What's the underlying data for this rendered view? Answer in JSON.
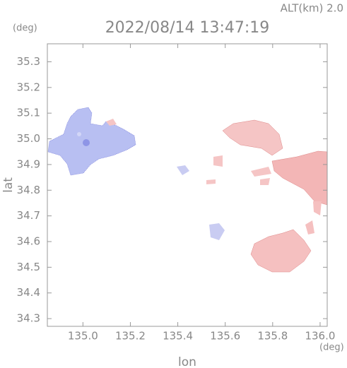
{
  "chart_data": {
    "type": "map",
    "title": "2022/08/14 13:47:19",
    "altitude_label": "ALT(km) 2.0",
    "y_unit": "(deg)",
    "x_unit": "(deg)",
    "ylabel": "lat",
    "xlabel": "lon",
    "xlim": [
      134.85,
      136.03
    ],
    "ylim": [
      34.27,
      35.37
    ],
    "xticks": [
      {
        "value": 135.0,
        "label": "135.0"
      },
      135.2,
      135.4,
      135.6,
      135.8,
      {
        "value": 136.0,
        "label": "136.0"
      }
    ],
    "yticks": [
      35.3,
      35.2,
      35.1,
      {
        "value": 35.0,
        "label": "35.0"
      },
      34.9,
      34.8,
      34.7,
      34.6,
      34.5,
      34.4,
      34.3
    ]
  }
}
